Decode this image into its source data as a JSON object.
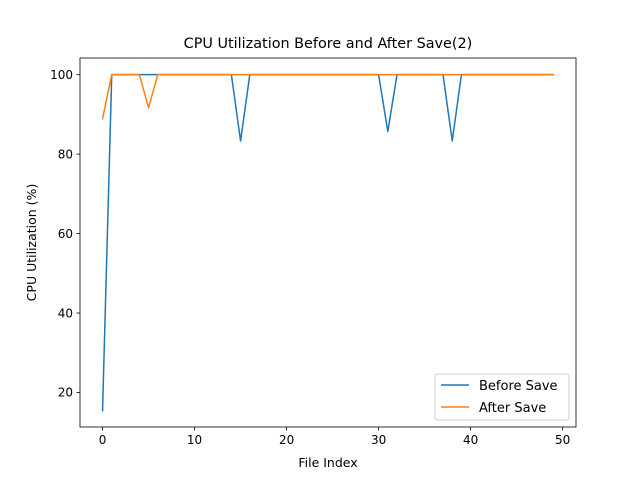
{
  "chart_data": {
    "type": "line",
    "title": "CPU Utilization Before and After Save(2)",
    "xlabel": "File Index",
    "ylabel": "CPU Utilization (%)",
    "xlim": [
      -2.45,
      51.45
    ],
    "ylim": [
      11.3,
      104.2
    ],
    "xticks": [
      0,
      10,
      20,
      30,
      40,
      50
    ],
    "yticks": [
      20,
      40,
      60,
      80,
      100
    ],
    "grid": false,
    "legend_position": "lower-right",
    "x": [
      0,
      1,
      2,
      3,
      4,
      5,
      6,
      7,
      8,
      9,
      10,
      11,
      12,
      13,
      14,
      15,
      16,
      17,
      18,
      19,
      20,
      21,
      22,
      23,
      24,
      25,
      26,
      27,
      28,
      29,
      30,
      31,
      32,
      33,
      34,
      35,
      36,
      37,
      38,
      39,
      40,
      41,
      42,
      43,
      44,
      45,
      46,
      47,
      48,
      49
    ],
    "series": [
      {
        "name": "Before Save",
        "color": "#1f77b4",
        "values": [
          15.4,
          100,
          100,
          100,
          100,
          100,
          100,
          100,
          100,
          100,
          100,
          100,
          100,
          100,
          100,
          83.3,
          100,
          100,
          100,
          100,
          100,
          100,
          100,
          100,
          100,
          100,
          100,
          100,
          100,
          100,
          100,
          85.7,
          100,
          100,
          100,
          100,
          100,
          100,
          83.3,
          100,
          100,
          100,
          100,
          100,
          100,
          100,
          100,
          100,
          100,
          100
        ]
      },
      {
        "name": "After Save",
        "color": "#ff7f0e",
        "values": [
          88.9,
          100,
          100,
          100,
          100,
          91.7,
          100,
          100,
          100,
          100,
          100,
          100,
          100,
          100,
          100,
          100,
          100,
          100,
          100,
          100,
          100,
          100,
          100,
          100,
          100,
          100,
          100,
          100,
          100,
          100,
          100,
          100,
          100,
          100,
          100,
          100,
          100,
          100,
          100,
          100,
          100,
          100,
          100,
          100,
          100,
          100,
          100,
          100,
          100,
          100
        ]
      }
    ]
  }
}
